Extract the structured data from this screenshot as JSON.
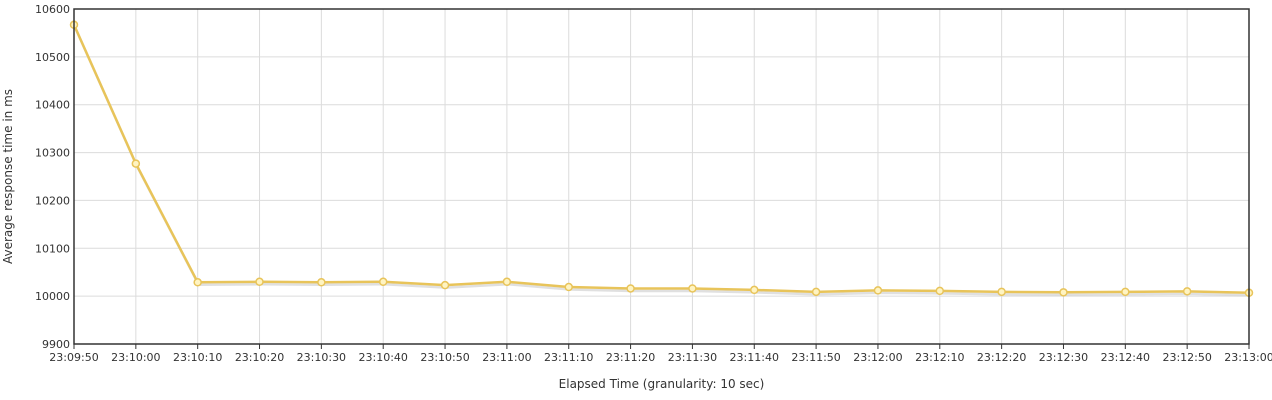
{
  "chart_data": {
    "type": "line",
    "xlabel": "Elapsed Time (granularity: 10 sec)",
    "ylabel": "Average response time in ms",
    "ylim": [
      9900,
      10600
    ],
    "yticks": [
      9900,
      10000,
      10100,
      10200,
      10300,
      10400,
      10500,
      10600
    ],
    "grid": true,
    "legend": "none",
    "colors": {
      "line": "#e8c45a",
      "marker_fill": "#fff4c2",
      "shadow": "#cccccc",
      "grid": "#dcdcdc",
      "frame": "#333333"
    },
    "categories": [
      "23:09:50",
      "23:10:00",
      "23:10:10",
      "23:10:20",
      "23:10:30",
      "23:10:40",
      "23:10:50",
      "23:11:00",
      "23:11:10",
      "23:11:20",
      "23:11:30",
      "23:11:40",
      "23:11:50",
      "23:12:00",
      "23:12:10",
      "23:12:20",
      "23:12:30",
      "23:12:40",
      "23:12:50",
      "23:13:00"
    ],
    "series": [
      {
        "values": [
          10567,
          10277,
          10029,
          10030,
          10029,
          10030,
          10023,
          10030,
          10019,
          10016,
          10016,
          10013,
          10009,
          10012,
          10011,
          10009,
          10008,
          10009,
          10010,
          10007
        ]
      }
    ]
  }
}
